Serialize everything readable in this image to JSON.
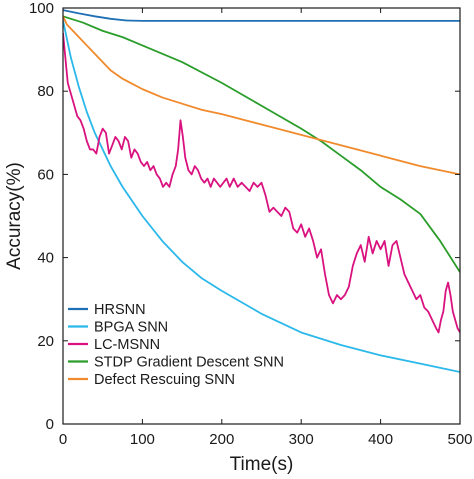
{
  "chart_data": {
    "type": "line",
    "xlabel": "Time(s)",
    "ylabel": "Accuracy(%)",
    "xlim": [
      0,
      500
    ],
    "ylim": [
      0,
      100
    ],
    "xticks": [
      "0",
      "100",
      "200",
      "300",
      "400",
      "500"
    ],
    "yticks": [
      "0",
      "20",
      "40",
      "60",
      "80",
      "100"
    ],
    "grid": false,
    "legend_position": "bottom-left",
    "series": [
      {
        "name": "HRSNN",
        "color": "#1f6fb5",
        "x": [
          0,
          20,
          40,
          60,
          80,
          100,
          150,
          200,
          300,
          400,
          500
        ],
        "y": [
          99.5,
          98.7,
          98.0,
          97.4,
          97.0,
          96.9,
          96.9,
          96.9,
          96.9,
          96.9,
          96.9
        ]
      },
      {
        "name": "BPGA SNN",
        "color": "#2bb8ea",
        "x": [
          0,
          10,
          20,
          30,
          40,
          50,
          60,
          75,
          100,
          125,
          150,
          175,
          200,
          250,
          300,
          350,
          400,
          450,
          500
        ],
        "y": [
          97,
          88,
          81,
          75,
          70,
          66,
          62,
          57,
          50,
          44,
          39,
          35,
          32,
          26.5,
          22,
          19,
          16.5,
          14.5,
          12.5
        ]
      },
      {
        "name": "LC-MSNN",
        "color": "#d9127f",
        "x": [
          0,
          3,
          6,
          9,
          12,
          15,
          18,
          22,
          26,
          30,
          34,
          38,
          42,
          46,
          50,
          54,
          58,
          62,
          66,
          70,
          74,
          78,
          82,
          86,
          90,
          94,
          98,
          102,
          106,
          110,
          114,
          118,
          122,
          126,
          130,
          134,
          138,
          142,
          145,
          148,
          151,
          154,
          158,
          162,
          166,
          170,
          174,
          178,
          182,
          186,
          190,
          194,
          198,
          202,
          206,
          210,
          215,
          220,
          225,
          230,
          235,
          240,
          245,
          250,
          255,
          260,
          265,
          270,
          275,
          280,
          285,
          290,
          295,
          300,
          305,
          310,
          315,
          320,
          325,
          330,
          335,
          340,
          345,
          350,
          355,
          360,
          365,
          370,
          375,
          380,
          385,
          390,
          395,
          400,
          405,
          410,
          415,
          420,
          425,
          430,
          435,
          440,
          445,
          450,
          455,
          460,
          465,
          470,
          473,
          476,
          479,
          482,
          485,
          488,
          491,
          494,
          497,
          500
        ],
        "y": [
          94,
          88,
          82,
          80,
          78,
          76,
          74,
          73,
          71,
          68,
          66,
          66,
          65,
          69,
          71,
          70,
          65,
          67,
          69,
          68,
          66,
          69,
          68,
          64,
          66,
          65,
          63,
          62,
          63,
          61,
          62,
          60,
          59,
          57,
          58,
          57,
          60,
          62,
          66,
          73,
          69,
          64,
          61,
          60,
          62,
          61,
          59,
          58,
          59,
          57,
          59,
          58,
          57,
          58,
          59,
          57,
          59,
          57,
          58,
          57,
          56,
          58,
          57,
          58,
          55,
          51,
          52,
          51,
          50,
          52,
          51,
          47,
          46,
          48,
          45,
          47,
          44,
          40,
          42,
          36,
          31,
          29,
          31,
          30,
          31,
          33,
          38,
          41,
          43,
          39,
          45,
          41,
          44,
          42,
          44,
          38,
          43,
          44,
          40,
          36,
          34,
          32,
          30,
          31,
          28,
          27,
          25,
          23,
          22,
          25,
          27,
          32,
          34,
          31,
          27,
          25,
          23,
          22
        ]
      },
      {
        "name": "STDP Gradient Descent SNN",
        "color": "#2a9d2a",
        "x": [
          0,
          25,
          50,
          75,
          100,
          150,
          200,
          250,
          300,
          325,
          350,
          375,
          400,
          425,
          450,
          475,
          500
        ],
        "y": [
          98,
          96.5,
          94.5,
          93,
          91,
          87,
          82,
          76.5,
          71,
          68,
          64.5,
          61,
          57,
          54,
          50.5,
          44,
          36.5
        ]
      },
      {
        "name": "Defect Rescuing SNN",
        "color": "#f08a2c",
        "x": [
          0,
          5,
          10,
          20,
          30,
          40,
          50,
          60,
          75,
          100,
          125,
          150,
          175,
          200,
          250,
          300,
          350,
          400,
          450,
          500
        ],
        "y": [
          98,
          96,
          95,
          93,
          91,
          89,
          87,
          85,
          83,
          80.5,
          78.5,
          77,
          75.5,
          74.5,
          72,
          69.5,
          67,
          64.5,
          62,
          60
        ]
      }
    ]
  }
}
